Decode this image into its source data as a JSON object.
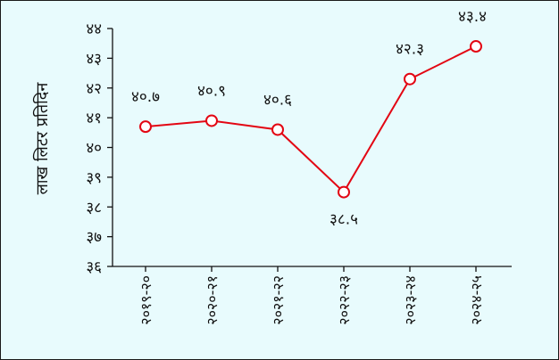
{
  "chart_data": {
    "type": "line",
    "title": "",
    "xlabel": "",
    "ylabel": "लाख लिटर प्रतिदिन",
    "ylim": [
      36,
      44
    ],
    "yticks": [
      36,
      37,
      38,
      39,
      40,
      41,
      42,
      43,
      44
    ],
    "ytick_labels": [
      "३६",
      "३७",
      "३८",
      "३९",
      "४०",
      "४१",
      "४२",
      "४३",
      "४४"
    ],
    "categories": [
      "२०१९-२०",
      "२०२०-२१",
      "२०२१-२२",
      "२०२२-२३",
      "२०२३-२४",
      "२०२४-२५"
    ],
    "series": [
      {
        "values": [
          40.7,
          40.9,
          40.6,
          38.5,
          42.3,
          43.4
        ],
        "labels": [
          "४०.७",
          "४०.९",
          "४०.६",
          "३८.५",
          "४२.३",
          "४३.४"
        ],
        "color": "#e30613"
      }
    ],
    "grid": false,
    "legend": "none",
    "colors": {
      "background": "#e8fbfd",
      "line": "#e30613",
      "marker_fill": "#ffffff",
      "axis": "#111111"
    }
  }
}
